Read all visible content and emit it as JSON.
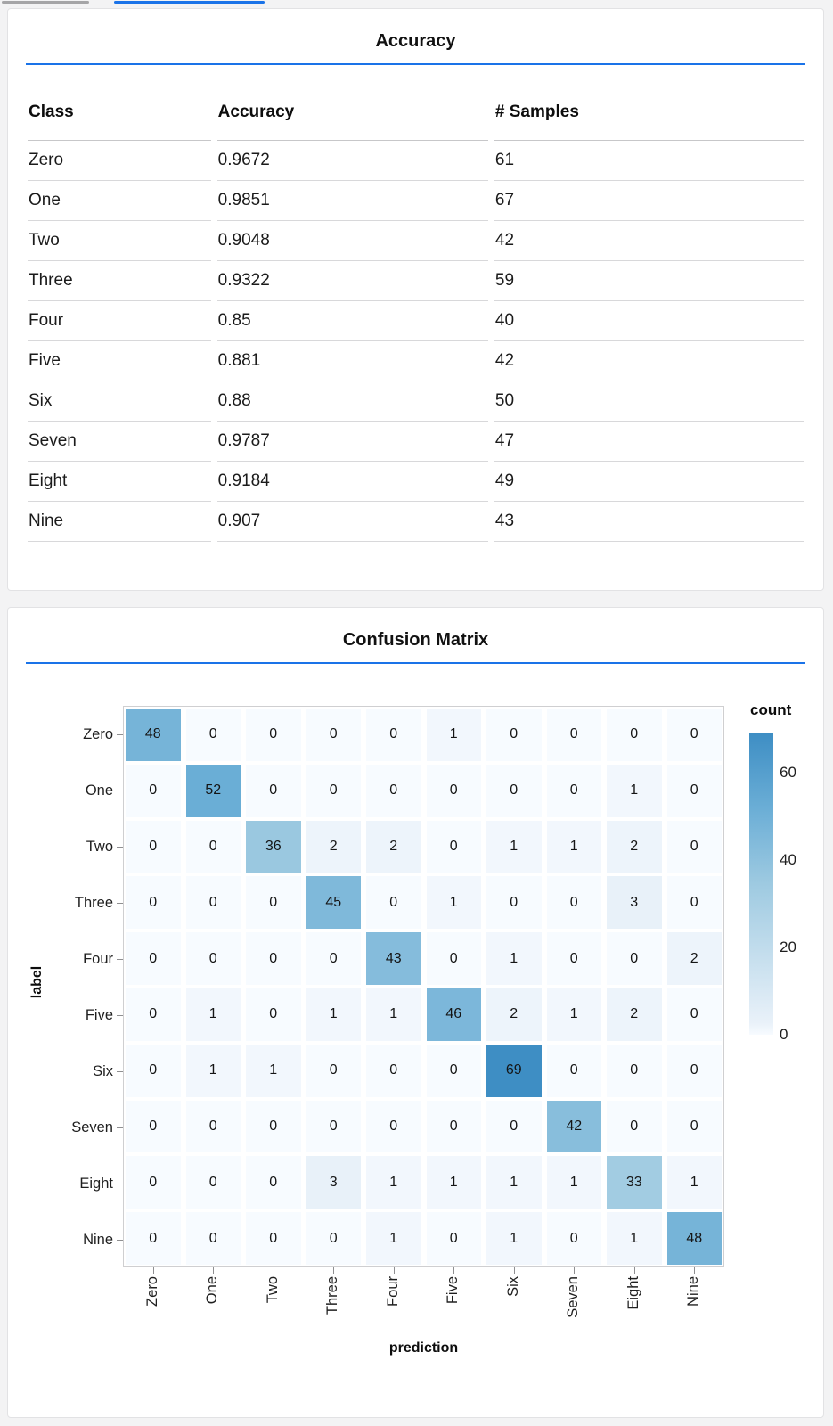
{
  "page": {
    "background": "#f3f3f4",
    "accent": "#1a73e8"
  },
  "tabs": {
    "inactive_underline_color": "#a5a5a7",
    "active_underline_color": "#1a73e8"
  },
  "chart_data": [
    {
      "type": "table",
      "title": "Accuracy",
      "columns": [
        "Class",
        "Accuracy",
        "# Samples"
      ],
      "rows": [
        [
          "Zero",
          "0.9672",
          "61"
        ],
        [
          "One",
          "0.9851",
          "67"
        ],
        [
          "Two",
          "0.9048",
          "42"
        ],
        [
          "Three",
          "0.9322",
          "59"
        ],
        [
          "Four",
          "0.85",
          "40"
        ],
        [
          "Five",
          "0.881",
          "42"
        ],
        [
          "Six",
          "0.88",
          "50"
        ],
        [
          "Seven",
          "0.9787",
          "47"
        ],
        [
          "Eight",
          "0.9184",
          "49"
        ],
        [
          "Nine",
          "0.907",
          "43"
        ]
      ]
    },
    {
      "type": "heatmap",
      "title": "Confusion Matrix",
      "xlabel": "prediction",
      "ylabel": "label",
      "x_categories": [
        "Zero",
        "One",
        "Two",
        "Three",
        "Four",
        "Five",
        "Six",
        "Seven",
        "Eight",
        "Nine"
      ],
      "y_categories": [
        "Zero",
        "One",
        "Two",
        "Three",
        "Four",
        "Five",
        "Six",
        "Seven",
        "Eight",
        "Nine"
      ],
      "matrix": [
        [
          48,
          0,
          0,
          0,
          0,
          1,
          0,
          0,
          0,
          0
        ],
        [
          0,
          52,
          0,
          0,
          0,
          0,
          0,
          0,
          1,
          0
        ],
        [
          0,
          0,
          36,
          2,
          2,
          0,
          1,
          1,
          2,
          0
        ],
        [
          0,
          0,
          0,
          45,
          0,
          1,
          0,
          0,
          3,
          0
        ],
        [
          0,
          0,
          0,
          0,
          43,
          0,
          1,
          0,
          0,
          2
        ],
        [
          0,
          1,
          0,
          1,
          1,
          46,
          2,
          1,
          2,
          0
        ],
        [
          0,
          1,
          1,
          0,
          0,
          0,
          69,
          0,
          0,
          0
        ],
        [
          0,
          0,
          0,
          0,
          0,
          0,
          0,
          42,
          0,
          0
        ],
        [
          0,
          0,
          0,
          3,
          1,
          1,
          1,
          1,
          33,
          1
        ],
        [
          0,
          0,
          0,
          0,
          1,
          0,
          1,
          0,
          1,
          48
        ]
      ],
      "legend": {
        "title": "count",
        "ticks": [
          60,
          40,
          20,
          0
        ],
        "domain": [
          0,
          69
        ]
      },
      "color_scale": [
        {
          "t": 0,
          "color": "#f7fbff"
        },
        {
          "t": 0.04,
          "color": "#e9f1f9"
        },
        {
          "t": 0.5,
          "color": "#9ecae1"
        },
        {
          "t": 0.75,
          "color": "#6baed6"
        },
        {
          "t": 1,
          "color": "#3e8ec4"
        }
      ]
    }
  ]
}
